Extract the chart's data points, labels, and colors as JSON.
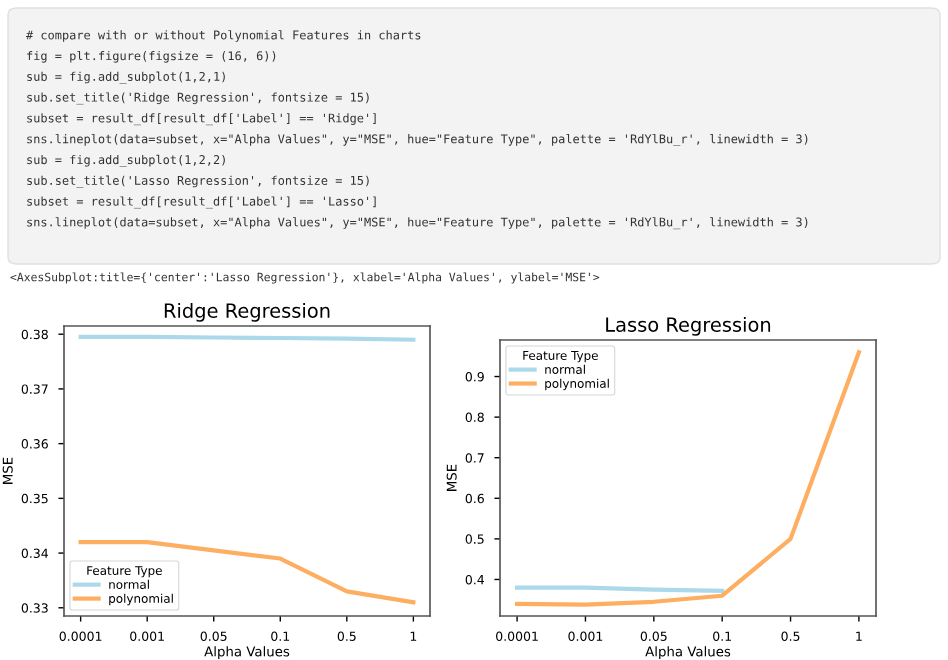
{
  "chart_data": [
    {
      "type": "line",
      "title": "Ridge Regression",
      "xlabel": "Alpha Values",
      "ylabel": "MSE",
      "legend_title": "Feature Type",
      "legend": "bottom left",
      "grid": false,
      "annotations": [
        "# compare with or without Polynomial Features in charts",
        "fig = plt.figure(figsize = (16, 6))",
        "sub = fig.add_subplot(1,2,1)",
        "sub.set_title('Ridge Regression', fontsize = 15)",
        "subset = result_df[result_df['Label'] == 'Ridge']",
        "sns.lineplot(data=subset, x=\"Alpha Values\", y=\"MSE\", hue=\"Feature Type\", palette = 'RdYlBu_r', linewidth = 3)",
        "sub = fig.add_subplot(1,2,2)",
        "sub.set_title('Lasso Regression', fontsize = 15)",
        "subset = result_df[result_df['Label'] == 'Lasso']",
        "sns.lineplot(data=subset, x=\"Alpha Values\", y=\"MSE\", hue=\"Feature Type\", palette = 'RdYlBu_r', linewidth = 3)",
        "<AxesSubplot:title={'center':'Lasso Regression'}, xlabel='Alpha Values', ylabel='MSE'>"
      ],
      "categories": [
        "0.0001",
        "0.001",
        "0.05",
        "0.1",
        "0.5",
        "1"
      ],
      "ylim": [
        0.3285,
        0.3815
      ],
      "yticks": [
        0.33,
        0.34,
        0.35,
        0.36,
        0.37,
        0.38
      ],
      "series": [
        {
          "name": "normal",
          "color": "#abd9e9",
          "values": [
            0.3795,
            0.3795,
            0.3794,
            0.3793,
            0.3792,
            0.379
          ]
        },
        {
          "name": "polynomial",
          "color": "#fdae61",
          "values": [
            0.342,
            0.342,
            0.3405,
            0.339,
            0.333,
            0.331
          ]
        }
      ]
    },
    {
      "type": "line",
      "title": "Lasso Regression",
      "xlabel": "Alpha Values",
      "ylabel": "MSE",
      "legend_title": "Feature Type",
      "legend": "top left",
      "grid": false,
      "categories": [
        "0.0001",
        "0.001",
        "0.05",
        "0.1",
        "0.5",
        "1"
      ],
      "ylim": [
        0.31,
        0.99
      ],
      "yticks": [
        0.4,
        0.5,
        0.6,
        0.7,
        0.8,
        0.9
      ],
      "series": [
        {
          "name": "normal",
          "color": "#abd9e9",
          "values": [
            0.38,
            0.38,
            0.375,
            0.372,
            null,
            null
          ]
        },
        {
          "name": "polynomial",
          "color": "#fdae61",
          "values": [
            0.34,
            0.338,
            0.345,
            0.36,
            0.5,
            0.96
          ]
        }
      ]
    }
  ]
}
